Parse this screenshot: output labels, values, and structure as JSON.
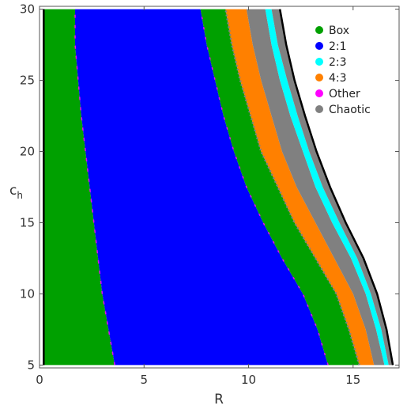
{
  "chart_data": {
    "type": "area",
    "title": "",
    "xlabel": "R",
    "ylabel_main": "c",
    "ylabel_sub": "h",
    "xlim": [
      0,
      17.2
    ],
    "ylim": [
      4.8,
      30.2
    ],
    "x_ticks": [
      0,
      5,
      10,
      15
    ],
    "y_ticks": [
      5,
      10,
      15,
      20,
      25,
      30
    ],
    "grid": false,
    "legend_position": "top-right",
    "legend": [
      {
        "label": "Box",
        "color": "#00a000"
      },
      {
        "label": "2:1",
        "color": "#0000ff"
      },
      {
        "label": "2:3",
        "color": "#00ffff"
      },
      {
        "label": "4:3",
        "color": "#ff8000"
      },
      {
        "label": "Other",
        "color": "#ff00ff"
      },
      {
        "label": "Chaotic",
        "color": "#808080"
      }
    ],
    "c_levels": [
      5,
      7.5,
      10,
      12.5,
      15,
      17.5,
      20,
      22.5,
      25,
      27.5,
      30
    ],
    "region_bounds": {
      "inner_edge": [
        0.2,
        0.2,
        0.2,
        0.2,
        0.2,
        0.2,
        0.2,
        0.2,
        0.2,
        0.2,
        0.2
      ],
      "box_inner_to_2_1": [
        3.6,
        3.3,
        3.0,
        2.8,
        2.6,
        2.4,
        2.2,
        2.0,
        1.85,
        1.7,
        1.7
      ],
      "2_1_to_box_outer": [
        13.8,
        13.3,
        12.6,
        11.6,
        10.7,
        9.9,
        9.3,
        8.8,
        8.4,
        8.0,
        7.7
      ],
      "box_outer_to_4_3": [
        15.3,
        14.8,
        14.2,
        13.2,
        12.2,
        11.4,
        10.6,
        10.1,
        9.6,
        9.2,
        8.9
      ],
      "4_3_to_chaotic": [
        16.0,
        15.6,
        15.0,
        14.1,
        13.2,
        12.3,
        11.6,
        11.1,
        10.6,
        10.2,
        9.9
      ],
      "chaotic_to_2_3": [
        16.5,
        16.1,
        15.6,
        14.9,
        14.0,
        13.2,
        12.6,
        12.0,
        11.5,
        11.1,
        10.8
      ],
      "2_3_to_chaotic": [
        16.7,
        16.35,
        15.85,
        15.2,
        14.35,
        13.55,
        12.9,
        12.35,
        11.85,
        11.4,
        11.1
      ],
      "outer_edge": [
        16.9,
        16.6,
        16.15,
        15.5,
        14.65,
        13.9,
        13.25,
        12.7,
        12.2,
        11.8,
        11.5
      ]
    }
  }
}
